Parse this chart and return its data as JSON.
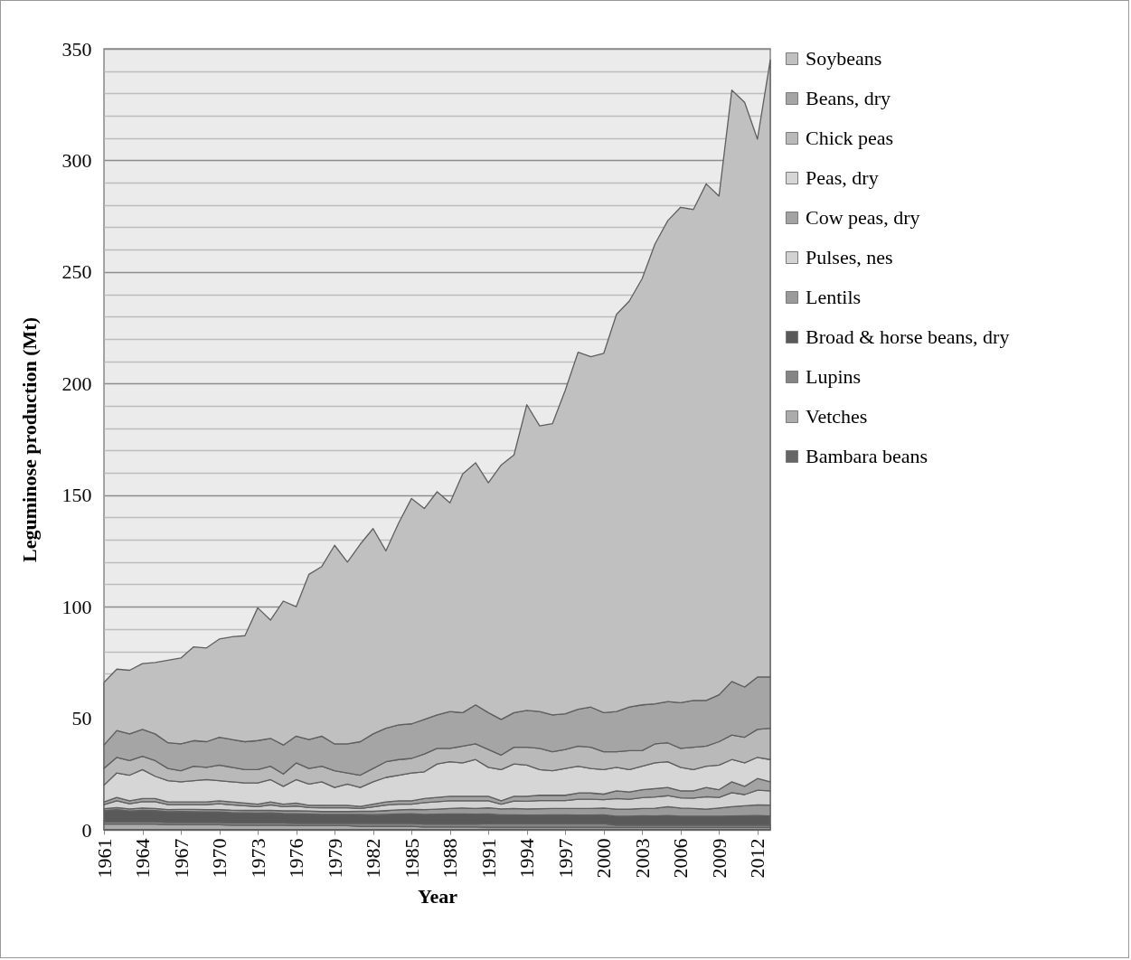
{
  "chart_data": {
    "type": "area",
    "stacked": true,
    "xlabel": "Year",
    "ylabel": "Leguminose production (Mt)",
    "x": [
      1961,
      1962,
      1963,
      1964,
      1965,
      1966,
      1967,
      1968,
      1969,
      1970,
      1971,
      1972,
      1973,
      1974,
      1975,
      1976,
      1977,
      1978,
      1979,
      1980,
      1981,
      1982,
      1983,
      1984,
      1985,
      1986,
      1987,
      1988,
      1989,
      1990,
      1991,
      1992,
      1993,
      1994,
      1995,
      1996,
      1997,
      1998,
      1999,
      2000,
      2001,
      2002,
      2003,
      2004,
      2005,
      2006,
      2007,
      2008,
      2009,
      2010,
      2011,
      2012,
      2013
    ],
    "xlim": [
      1961,
      2013
    ],
    "xticks": [
      1961,
      1964,
      1967,
      1970,
      1973,
      1976,
      1979,
      1982,
      1985,
      1988,
      1991,
      1994,
      1997,
      2000,
      2003,
      2006,
      2009,
      2012
    ],
    "ylim": [
      0,
      350
    ],
    "yticks": [
      0,
      50,
      {
        "value": 70,
        "label": null
      },
      {
        "value": 80,
        "label": null
      },
      {
        "value": 90,
        "label": null
      },
      100,
      {
        "value": 110,
        "label": null
      },
      {
        "value": 120,
        "label": null
      },
      {
        "value": 130,
        "label": null
      },
      {
        "value": 140,
        "label": null
      },
      150,
      {
        "value": 160,
        "label": null
      },
      {
        "value": 170,
        "label": null
      },
      {
        "value": 180,
        "label": null
      },
      {
        "value": 190,
        "label": null
      },
      200,
      {
        "value": 210,
        "label": null
      },
      {
        "value": 220,
        "label": null
      },
      {
        "value": 230,
        "label": null
      },
      {
        "value": 240,
        "label": null
      },
      250,
      {
        "value": 260,
        "label": null
      },
      {
        "value": 270,
        "label": null
      },
      {
        "value": 280,
        "label": null
      },
      {
        "value": 290,
        "label": null
      },
      300,
      {
        "value": 310,
        "label": null
      },
      {
        "value": 320,
        "label": null
      },
      {
        "value": 330,
        "label": null
      },
      {
        "value": 340,
        "label": null
      },
      350
    ],
    "grid": "y",
    "legend": "right",
    "series": [
      {
        "name": "Bambara beans",
        "color": "#666666",
        "values": [
          0.1,
          0.1,
          0.1,
          0.1,
          0.1,
          0.1,
          0.1,
          0.1,
          0.1,
          0.1,
          0.1,
          0.1,
          0.1,
          0.1,
          0.1,
          0.1,
          0.1,
          0.1,
          0.1,
          0.1,
          0.1,
          0.1,
          0.1,
          0.1,
          0.1,
          0.1,
          0.1,
          0.1,
          0.1,
          0.1,
          0.2,
          0.2,
          0.2,
          0.2,
          0.2,
          0.2,
          0.2,
          0.2,
          0.2,
          0.2,
          0.2,
          0.2,
          0.2,
          0.2,
          0.2,
          0.2,
          0.2,
          0.2,
          0.2,
          0.2,
          0.2,
          0.2,
          0.2
        ]
      },
      {
        "name": "Vetches",
        "color": "#ababab",
        "values": [
          2.5,
          2.5,
          2.5,
          2.5,
          2.5,
          2.2,
          2.2,
          2.2,
          2.2,
          2.2,
          2.0,
          2.0,
          2.0,
          2.0,
          2.0,
          1.8,
          1.8,
          1.8,
          1.8,
          1.8,
          1.5,
          1.5,
          1.5,
          1.5,
          1.5,
          1.2,
          1.2,
          1.2,
          1.2,
          1.2,
          1.0,
          1.0,
          1.0,
          1.0,
          1.0,
          1.0,
          1.0,
          1.0,
          1.0,
          1.0,
          0.9,
          0.9,
          0.9,
          0.9,
          0.9,
          0.9,
          0.9,
          0.9,
          0.9,
          0.9,
          0.9,
          0.9,
          0.9
        ]
      },
      {
        "name": "Lupins",
        "color": "#858585",
        "values": [
          1.0,
          1.0,
          1.0,
          1.0,
          1.0,
          1.0,
          1.0,
          1.0,
          1.0,
          1.0,
          1.0,
          1.0,
          1.0,
          1.0,
          1.0,
          1.0,
          1.0,
          1.0,
          1.0,
          1.0,
          1.3,
          1.3,
          1.3,
          1.3,
          1.3,
          1.3,
          1.3,
          1.3,
          1.3,
          1.3,
          1.6,
          1.6,
          1.6,
          1.6,
          1.6,
          1.6,
          1.6,
          1.6,
          1.6,
          1.6,
          1.0,
          1.0,
          1.0,
          1.0,
          1.0,
          1.0,
          1.0,
          1.0,
          1.0,
          1.0,
          1.0,
          1.0,
          1.0
        ]
      },
      {
        "name": "Broad & horse beans, dry",
        "color": "#595959",
        "values": [
          5.0,
          5.5,
          4.8,
          5.2,
          5.0,
          4.8,
          4.9,
          4.8,
          4.7,
          4.7,
          4.6,
          4.5,
          4.4,
          4.5,
          4.2,
          4.3,
          4.2,
          4.0,
          4.0,
          4.0,
          4.0,
          3.9,
          4.0,
          4.2,
          4.3,
          4.3,
          4.4,
          4.5,
          4.5,
          4.4,
          4.3,
          3.9,
          3.9,
          3.8,
          3.8,
          3.9,
          3.9,
          3.8,
          3.8,
          3.9,
          4.0,
          4.0,
          4.2,
          4.1,
          4.3,
          4.0,
          4.0,
          4.0,
          4.0,
          4.1,
          4.2,
          4.3,
          4.1
        ]
      },
      {
        "name": "Lentils",
        "color": "#9a9a9a",
        "values": [
          0.9,
          0.9,
          1.0,
          1.0,
          1.0,
          1.0,
          1.0,
          1.1,
          1.1,
          1.1,
          1.1,
          1.1,
          1.2,
          1.2,
          1.2,
          1.3,
          1.3,
          1.3,
          1.3,
          1.3,
          1.4,
          1.5,
          1.7,
          1.9,
          2.0,
          2.2,
          2.3,
          2.5,
          2.7,
          2.6,
          2.8,
          2.7,
          2.9,
          2.8,
          2.9,
          2.9,
          2.9,
          3.0,
          3.0,
          3.1,
          3.2,
          3.2,
          3.3,
          3.5,
          4.0,
          3.7,
          3.5,
          3.2,
          3.7,
          4.2,
          4.5,
          4.8,
          4.9
        ]
      },
      {
        "name": "Pulses, nes",
        "color": "#d2d2d2",
        "values": [
          1.8,
          3.0,
          2.3,
          2.8,
          3.0,
          2.2,
          2.1,
          2.1,
          2.2,
          2.6,
          2.4,
          2.1,
          1.7,
          2.4,
          1.9,
          2.2,
          1.6,
          1.7,
          1.7,
          1.7,
          1.3,
          2.0,
          2.5,
          2.5,
          2.3,
          3.1,
          3.3,
          3.4,
          3.2,
          3.4,
          3.1,
          2.1,
          3.3,
          3.4,
          3.6,
          3.5,
          3.5,
          4.1,
          4.1,
          3.7,
          4.7,
          4.4,
          4.8,
          5.0,
          4.9,
          4.5,
          4.6,
          5.5,
          4.7,
          6.3,
          5.0,
          6.6,
          6.4
        ]
      },
      {
        "name": "Cow peas, dry",
        "color": "#a3a3a3",
        "values": [
          1.2,
          1.5,
          1.3,
          1.4,
          1.4,
          1.2,
          1.2,
          1.2,
          1.2,
          1.3,
          1.3,
          1.2,
          1.1,
          1.3,
          1.1,
          1.3,
          1.0,
          1.1,
          1.1,
          1.1,
          0.9,
          1.2,
          1.4,
          1.5,
          1.5,
          1.8,
          1.9,
          2.0,
          2.0,
          2.0,
          2.0,
          1.5,
          2.1,
          2.2,
          2.4,
          2.4,
          2.4,
          2.8,
          2.8,
          2.5,
          3.5,
          3.3,
          3.6,
          3.8,
          3.7,
          3.2,
          3.3,
          4.2,
          3.5,
          4.8,
          3.7,
          5.2,
          4.0
        ]
      },
      {
        "name": "Peas, dry",
        "color": "#d6d6d6",
        "values": [
          7.5,
          11,
          11.5,
          13,
          10,
          9.5,
          9,
          9.5,
          10,
          9,
          9,
          9,
          9.5,
          10,
          8,
          10.5,
          9.5,
          10.5,
          8,
          9.5,
          8.5,
          10,
          11,
          11.5,
          12.5,
          12,
          15,
          15.5,
          15,
          16.5,
          13,
          14,
          14.5,
          14,
          11.5,
          11,
          12,
          12,
          11,
          11,
          10.5,
          10,
          10.5,
          11.5,
          11.5,
          10.5,
          9.5,
          9.5,
          11,
          10,
          10.5,
          9.5,
          10
        ]
      },
      {
        "name": "Chick peas",
        "color": "#b9b9b9",
        "values": [
          7.5,
          7,
          6.5,
          6,
          7,
          5.5,
          5,
          6.5,
          5.5,
          7,
          6.5,
          6,
          6,
          6,
          5.5,
          7.5,
          7,
          7,
          7.5,
          5,
          5.5,
          6,
          7,
          7,
          6.5,
          8,
          7,
          6,
          7.5,
          7,
          8,
          6.5,
          7.5,
          8,
          9.5,
          8.5,
          8.5,
          9,
          9.5,
          8,
          7,
          8.5,
          7,
          8.5,
          8.5,
          8.5,
          10,
          9,
          10.5,
          11,
          11.5,
          12.5,
          14
        ]
      },
      {
        "name": "Beans, dry",
        "color": "#a5a5a5",
        "values": [
          10.5,
          12,
          12,
          12,
          12,
          11.5,
          12,
          11.5,
          11.5,
          12.5,
          12.5,
          12.5,
          13,
          12.5,
          13,
          12,
          13,
          13.5,
          12,
          13,
          15,
          15.5,
          15,
          15.5,
          15.5,
          15.5,
          15,
          16.5,
          15,
          17.5,
          16.5,
          16,
          15.5,
          16.5,
          16.5,
          16.5,
          16,
          16.5,
          18,
          17.5,
          18,
          19.5,
          20.5,
          18,
          18.5,
          20.5,
          21,
          20.5,
          21,
          24,
          22.5,
          23.5,
          23
        ]
      },
      {
        "name": "Soybeans",
        "color": "#c0c0c0",
        "values": [
          28,
          27.5,
          28.5,
          29.5,
          32,
          37,
          38.5,
          42,
          42,
          44,
          46,
          47.5,
          59.5,
          53,
          64.5,
          58,
          74,
          76,
          89,
          81.5,
          88.5,
          92,
          79.5,
          90.5,
          101,
          94.5,
          100,
          93.5,
          107,
          108.5,
          103,
          114,
          115.5,
          137,
          128,
          130.5,
          145,
          160,
          157,
          161,
          178,
          182,
          191,
          206,
          215.5,
          222,
          220,
          231.5,
          223.5,
          265,
          262,
          241,
          276.5
        ]
      }
    ]
  }
}
